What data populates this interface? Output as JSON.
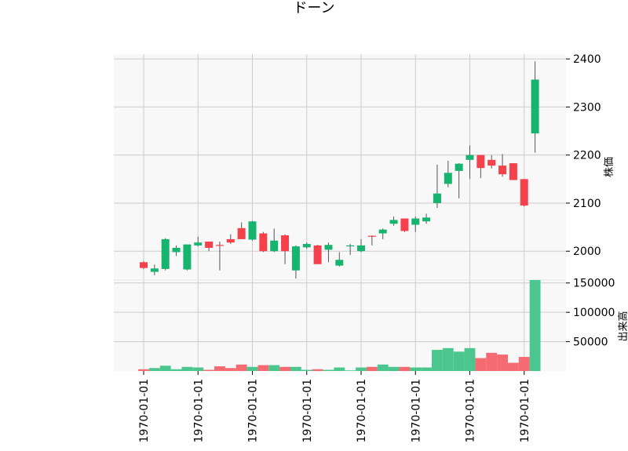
{
  "chart_data": {
    "type": "candlestick",
    "title": "ドーン",
    "price_axis_label": "株価",
    "volume_axis_label": "出来高",
    "x_tick_labels": [
      "1970-01-01",
      "1970-01-01",
      "1970-01-01",
      "1970-01-01",
      "1970-01-01",
      "1970-01-01",
      "1970-01-01",
      "1970-01-01"
    ],
    "x_tick_positions": [
      0,
      5,
      10,
      15,
      20,
      25,
      30,
      35
    ],
    "price_ylim": [
      1940,
      2410
    ],
    "price_ticks": [
      2000,
      2100,
      2200,
      2300,
      2400
    ],
    "price_tick_labels": [
      "2000",
      "2100",
      "2200",
      "2300",
      "2400"
    ],
    "volume_ylim": [
      0,
      155000
    ],
    "volume_ticks": [
      50000,
      100000,
      150000
    ],
    "volume_tick_labels": [
      "50000",
      "100000",
      "150000"
    ],
    "grid": true,
    "colors": {
      "up": "#16b46e",
      "down": "#f5414b",
      "wick": "#555555",
      "volume_up": "#4cc68f",
      "volume_down": "#f66b72",
      "panel": "#f8f8f8",
      "grid": "#cccccc"
    },
    "candles": [
      {
        "open": 1977,
        "high": 1979,
        "low": 1963,
        "close": 1965,
        "volume": 3000
      },
      {
        "open": 1957,
        "high": 1972,
        "low": 1950,
        "close": 1964,
        "volume": 5000
      },
      {
        "open": 1963,
        "high": 2027,
        "low": 1960,
        "close": 2025,
        "volume": 9000
      },
      {
        "open": 1998,
        "high": 2012,
        "low": 1990,
        "close": 2007,
        "volume": 3000
      },
      {
        "open": 1962,
        "high": 2014,
        "low": 1960,
        "close": 2014,
        "volume": 7000
      },
      {
        "open": 2012,
        "high": 2030,
        "low": 2010,
        "close": 2018,
        "volume": 6000
      },
      {
        "open": 2020,
        "high": 2020,
        "low": 2000,
        "close": 2007,
        "volume": 2000
      },
      {
        "open": 2013,
        "high": 2020,
        "low": 1960,
        "close": 2012,
        "volume": 8000
      },
      {
        "open": 2025,
        "high": 2035,
        "low": 2015,
        "close": 2018,
        "volume": 5000
      },
      {
        "open": 2048,
        "high": 2060,
        "low": 2025,
        "close": 2025,
        "volume": 11000
      },
      {
        "open": 2024,
        "high": 2063,
        "low": 2022,
        "close": 2062,
        "volume": 7000
      },
      {
        "open": 2037,
        "high": 2040,
        "low": 1998,
        "close": 2000,
        "volume": 10000
      },
      {
        "open": 2000,
        "high": 2047,
        "low": 1998,
        "close": 2022,
        "volume": 10000
      },
      {
        "open": 2033,
        "high": 2035,
        "low": 1973,
        "close": 2000,
        "volume": 7000
      },
      {
        "open": 1960,
        "high": 2012,
        "low": 1943,
        "close": 2010,
        "volume": 7000
      },
      {
        "open": 2008,
        "high": 2018,
        "low": 2005,
        "close": 2015,
        "volume": 2000
      },
      {
        "open": 2012,
        "high": 2013,
        "low": 1973,
        "close": 1973,
        "volume": 3000
      },
      {
        "open": 2003,
        "high": 2018,
        "low": 1977,
        "close": 2013,
        "volume": 2000
      },
      {
        "open": 1970,
        "high": 1998,
        "low": 1968,
        "close": 1982,
        "volume": 6000
      },
      {
        "open": 2012,
        "high": 2015,
        "low": 1992,
        "close": 2012,
        "volume": 1000
      },
      {
        "open": 2000,
        "high": 2025,
        "low": 1998,
        "close": 2012,
        "volume": 6000
      },
      {
        "open": 2032,
        "high": 2033,
        "low": 2012,
        "close": 2030,
        "volume": 7000
      },
      {
        "open": 2037,
        "high": 2047,
        "low": 2025,
        "close": 2045,
        "volume": 11000
      },
      {
        "open": 2057,
        "high": 2072,
        "low": 2053,
        "close": 2065,
        "volume": 7000
      },
      {
        "open": 2068,
        "high": 2068,
        "low": 2040,
        "close": 2042,
        "volume": 7000
      },
      {
        "open": 2055,
        "high": 2072,
        "low": 2040,
        "close": 2068,
        "volume": 6000
      },
      {
        "open": 2062,
        "high": 2078,
        "low": 2057,
        "close": 2070,
        "volume": 6000
      },
      {
        "open": 2100,
        "high": 2180,
        "low": 2090,
        "close": 2120,
        "volume": 36000
      },
      {
        "open": 2140,
        "high": 2188,
        "low": 2133,
        "close": 2163,
        "volume": 39000
      },
      {
        "open": 2167,
        "high": 2183,
        "low": 2110,
        "close": 2182,
        "volume": 33000
      },
      {
        "open": 2190,
        "high": 2220,
        "low": 2150,
        "close": 2200,
        "volume": 39000
      },
      {
        "open": 2200,
        "high": 2200,
        "low": 2152,
        "close": 2173,
        "volume": 22000
      },
      {
        "open": 2190,
        "high": 2200,
        "low": 2172,
        "close": 2178,
        "volume": 31000
      },
      {
        "open": 2178,
        "high": 2202,
        "low": 2155,
        "close": 2160,
        "volume": 28000
      },
      {
        "open": 2183,
        "high": 2183,
        "low": 2148,
        "close": 2148,
        "volume": 14000
      },
      {
        "open": 2150,
        "high": 2150,
        "low": 2093,
        "close": 2095,
        "volume": 24000
      },
      {
        "open": 2245,
        "high": 2395,
        "low": 2205,
        "close": 2357,
        "volume": 155000
      }
    ]
  }
}
